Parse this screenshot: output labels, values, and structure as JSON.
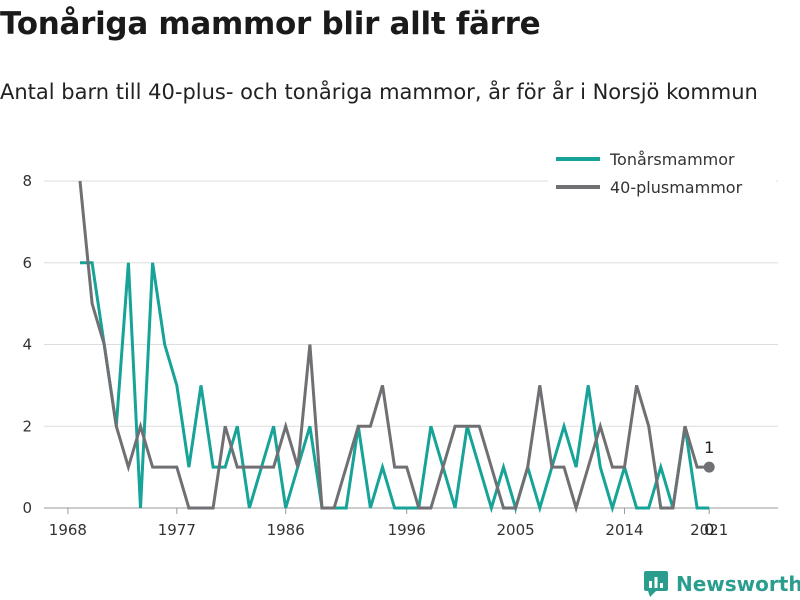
{
  "title": "Tonåriga mammor blir allt färre",
  "subtitle": "Antal barn till 40-plus- och tonåriga mammor, år för år i Norsjö kommun",
  "brand": {
    "name": "Newsworthy",
    "icon": "bar-chart-logo-icon"
  },
  "chart_data": {
    "type": "line",
    "xlim": [
      1968,
      2021
    ],
    "ylim": [
      0,
      8
    ],
    "x_ticks": [
      1968,
      1977,
      1986,
      1996,
      2005,
      2014,
      2021
    ],
    "x_tick_labels": [
      "1968",
      "1977",
      "1986",
      "1996",
      "2005",
      "2014",
      "2021"
    ],
    "y_ticks": [
      0,
      2,
      4,
      6,
      8
    ],
    "grid": true,
    "legend_position": "top-right",
    "x": [
      1969,
      1970,
      1971,
      1972,
      1973,
      1974,
      1975,
      1976,
      1977,
      1978,
      1979,
      1980,
      1981,
      1982,
      1983,
      1984,
      1985,
      1986,
      1987,
      1988,
      1989,
      1990,
      1991,
      1992,
      1993,
      1994,
      1995,
      1996,
      1997,
      1998,
      1999,
      2000,
      2001,
      2002,
      2003,
      2004,
      2005,
      2006,
      2007,
      2008,
      2009,
      2010,
      2011,
      2012,
      2013,
      2014,
      2015,
      2016,
      2017,
      2018,
      2019,
      2020,
      2021
    ],
    "series": [
      {
        "name": "Tonårsmammor",
        "color": "#17a398",
        "values": [
          6,
          6,
          4,
          2,
          6,
          0,
          6,
          4,
          3,
          1,
          3,
          1,
          1,
          2,
          0,
          1,
          2,
          0,
          1,
          2,
          0,
          0,
          0,
          2,
          0,
          1,
          0,
          0,
          0,
          2,
          1,
          0,
          2,
          1,
          0,
          1,
          0,
          1,
          0,
          1,
          2,
          1,
          3,
          1,
          0,
          1,
          0,
          0,
          1,
          0,
          2,
          0,
          0
        ]
      },
      {
        "name": "40-plusmammor",
        "color": "#707074",
        "values": [
          8,
          5,
          4,
          2,
          1,
          2,
          1,
          1,
          1,
          0,
          0,
          0,
          2,
          1,
          1,
          1,
          1,
          2,
          1,
          4,
          0,
          0,
          1,
          2,
          2,
          3,
          1,
          1,
          0,
          0,
          1,
          2,
          2,
          2,
          1,
          0,
          0,
          1,
          3,
          1,
          1,
          0,
          1,
          2,
          1,
          1,
          3,
          2,
          0,
          0,
          2,
          1,
          1
        ]
      }
    ],
    "annotations": [
      {
        "text": "1",
        "x": 2021,
        "y": 1
      },
      {
        "text": "0",
        "x": 2021,
        "y": 0
      }
    ]
  }
}
